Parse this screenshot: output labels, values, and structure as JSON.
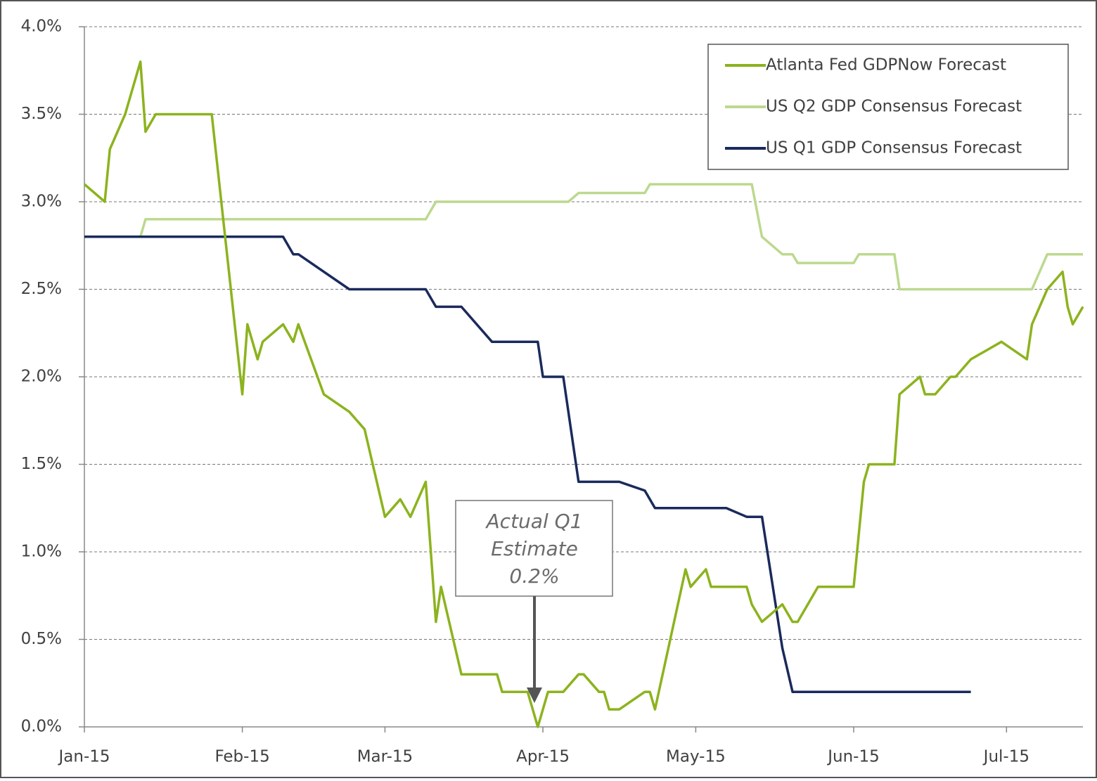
{
  "chart_data": {
    "type": "line",
    "xlim": [
      0,
      196
    ],
    "xticks": [
      {
        "value": 0,
        "label": "Jan-15"
      },
      {
        "value": 31,
        "label": "Feb-15"
      },
      {
        "value": 59,
        "label": "Mar-15"
      },
      {
        "value": 90,
        "label": "Apr-15"
      },
      {
        "value": 120,
        "label": "May-15"
      },
      {
        "value": 151,
        "label": "Jun-15"
      },
      {
        "value": 181,
        "label": "Jul-15"
      }
    ],
    "ylim": [
      0,
      4.0
    ],
    "yticks": [
      {
        "value": 0,
        "label": "0.0%"
      },
      {
        "value": 0.5,
        "label": "0.5%"
      },
      {
        "value": 1.0,
        "label": "1.0%"
      },
      {
        "value": 1.5,
        "label": "1.5%"
      },
      {
        "value": 2.0,
        "label": "2.0%"
      },
      {
        "value": 2.5,
        "label": "2.5%"
      },
      {
        "value": 3.0,
        "label": "3.0%"
      },
      {
        "value": 3.5,
        "label": "3.5%"
      },
      {
        "value": 4.0,
        "label": "4.0%"
      }
    ],
    "grid": true,
    "legend": "top-right",
    "annotation": [
      "Actual Q1",
      "Estimate",
      "0.2%"
    ],
    "series": [
      {
        "name": "Atlanta Fed GDPNow Forecast",
        "color": "#8cb31e",
        "x": [
          0,
          4,
          5,
          8,
          11,
          12,
          14,
          25,
          31,
          32,
          34,
          35,
          39,
          41,
          42,
          47,
          52,
          55,
          59,
          62,
          64,
          67,
          69,
          70,
          74,
          81,
          82,
          87,
          89,
          91,
          94,
          97,
          98,
          101,
          102,
          103,
          105,
          110,
          111,
          112,
          118,
          119,
          122,
          123,
          130,
          131,
          133,
          137,
          139,
          140,
          144,
          151,
          153,
          154,
          159,
          160,
          164,
          165,
          167,
          170,
          171,
          174,
          180,
          185,
          186,
          189,
          192,
          193,
          194,
          196
        ],
        "values": [
          3.1,
          3.0,
          3.3,
          3.5,
          3.8,
          3.4,
          3.5,
          3.5,
          1.9,
          2.3,
          2.1,
          2.2,
          2.3,
          2.2,
          2.3,
          1.9,
          1.8,
          1.7,
          1.2,
          1.3,
          1.2,
          1.4,
          0.6,
          0.8,
          0.3,
          0.3,
          0.2,
          0.2,
          0.0,
          0.2,
          0.2,
          0.3,
          0.3,
          0.2,
          0.2,
          0.1,
          0.1,
          0.2,
          0.2,
          0.1,
          0.9,
          0.8,
          0.9,
          0.8,
          0.8,
          0.7,
          0.6,
          0.7,
          0.6,
          0.6,
          0.8,
          0.8,
          1.4,
          1.5,
          1.5,
          1.9,
          2.0,
          1.9,
          1.9,
          2.0,
          2.0,
          2.1,
          2.2,
          2.1,
          2.3,
          2.5,
          2.6,
          2.4,
          2.3,
          2.4
        ]
      },
      {
        "name": "US Q2 GDP Consensus Forecast",
        "color": "#bcd98f",
        "x": [
          11,
          12,
          67,
          69,
          95,
          97,
          110,
          111,
          131,
          133,
          137,
          139,
          140,
          151,
          152,
          159,
          160,
          186,
          189,
          196
        ],
        "values": [
          2.8,
          2.9,
          2.9,
          3.0,
          3.0,
          3.05,
          3.05,
          3.1,
          3.1,
          2.8,
          2.7,
          2.7,
          2.65,
          2.65,
          2.7,
          2.7,
          2.5,
          2.5,
          2.7,
          2.7
        ]
      },
      {
        "name": "US Q1 GDP Consensus Forecast",
        "color": "#1a2a5c",
        "x": [
          0,
          39,
          41,
          42,
          52,
          67,
          69,
          74,
          80,
          89,
          90,
          94,
          97,
          105,
          110,
          112,
          126,
          130,
          133,
          137,
          139,
          174
        ],
        "values": [
          2.8,
          2.8,
          2.7,
          2.7,
          2.5,
          2.5,
          2.4,
          2.4,
          2.2,
          2.2,
          2.0,
          2.0,
          1.4,
          1.4,
          1.35,
          1.25,
          1.25,
          1.2,
          1.2,
          0.45,
          0.2,
          0.2
        ]
      }
    ]
  }
}
